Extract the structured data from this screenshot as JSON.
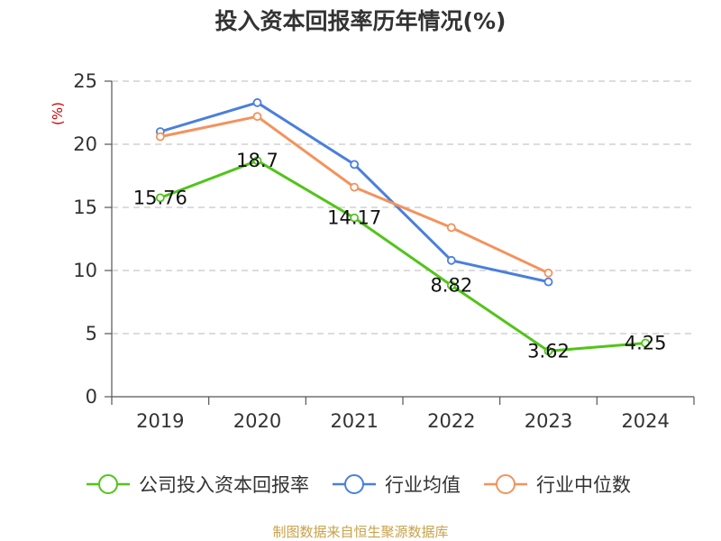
{
  "title": "投入资本回报率历年情况(%)",
  "source": "制图数据来自恒生聚源数据库",
  "chart_data": {
    "type": "line",
    "title": "投入资本回报率历年情况(%)",
    "unit_label": "(%)",
    "categories": [
      "2019",
      "2020",
      "2021",
      "2022",
      "2023",
      "2024"
    ],
    "ylim": [
      0,
      25
    ],
    "yticks": [
      0,
      5,
      10,
      15,
      20,
      25
    ],
    "grid": true,
    "legend_position": "bottom",
    "series": [
      {
        "name": "公司投入资本回报率",
        "color": "#52c41a",
        "values": [
          15.76,
          18.7,
          14.17,
          8.82,
          3.62,
          4.25
        ],
        "labels": [
          "15.76",
          "18.7",
          "14.17",
          "8.82",
          "3.62",
          "4.25"
        ]
      },
      {
        "name": "行业均值",
        "color": "#4a7fdc",
        "values": [
          21.0,
          23.3,
          18.4,
          10.8,
          9.1,
          null
        ]
      },
      {
        "name": "行业中位数",
        "color": "#f4925c",
        "values": [
          20.6,
          22.2,
          16.6,
          13.4,
          9.8,
          null
        ]
      }
    ]
  }
}
